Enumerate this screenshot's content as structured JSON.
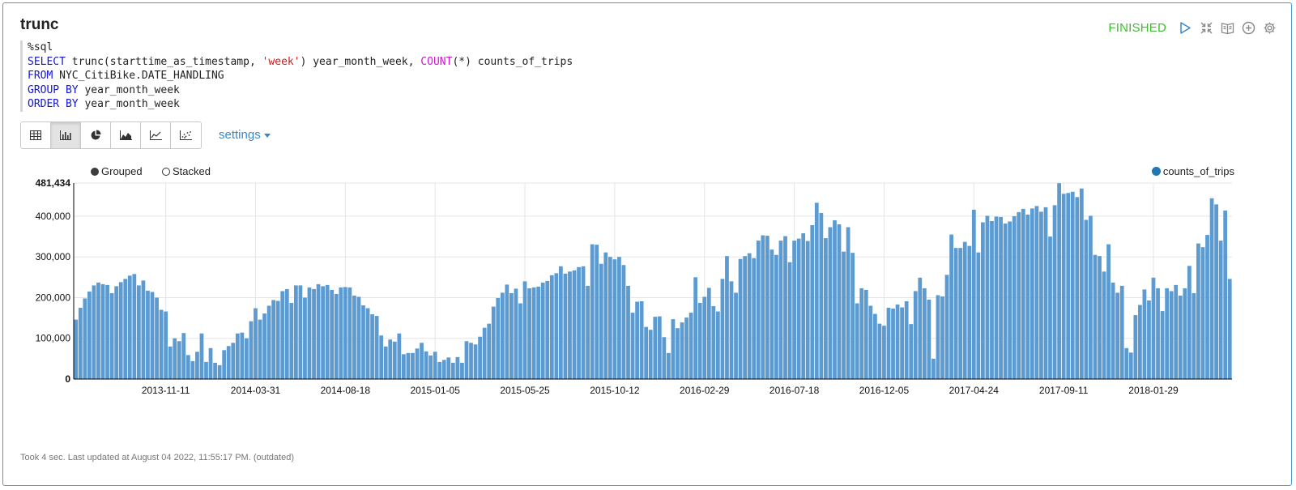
{
  "paragraph": {
    "title": "trunc",
    "status": "FINISHED",
    "status_color": "#3ebd2f",
    "control_icons": [
      "run-icon",
      "collapse-icon",
      "book-icon",
      "add-icon",
      "gear-icon"
    ]
  },
  "code": {
    "lines": [
      [
        {
          "t": "%sql",
          "c": ""
        }
      ],
      [
        {
          "t": "SELECT",
          "c": "kw"
        },
        {
          "t": " trunc(starttime_as_timestamp, ",
          "c": ""
        },
        {
          "t": "'week'",
          "c": "str"
        },
        {
          "t": ") year_month_week, ",
          "c": ""
        },
        {
          "t": "COUNT",
          "c": "fn"
        },
        {
          "t": "(*) counts_of_trips",
          "c": ""
        }
      ],
      [
        {
          "t": "FROM",
          "c": "kw"
        },
        {
          "t": " NYC_CitiBike.DATE_HANDLING",
          "c": ""
        }
      ],
      [
        {
          "t": "GROUP BY",
          "c": "kw"
        },
        {
          "t": " year_month_week",
          "c": ""
        }
      ],
      [
        {
          "t": "ORDER BY",
          "c": "kw"
        },
        {
          "t": " year_month_week",
          "c": ""
        }
      ]
    ]
  },
  "toolbar": {
    "buttons": [
      {
        "name": "table-view-button",
        "icon": "table-icon"
      },
      {
        "name": "bar-chart-button",
        "icon": "bar-chart-icon",
        "active": true
      },
      {
        "name": "pie-chart-button",
        "icon": "pie-chart-icon"
      },
      {
        "name": "area-chart-button",
        "icon": "area-chart-icon"
      },
      {
        "name": "line-chart-button",
        "icon": "line-chart-icon"
      },
      {
        "name": "scatter-chart-button",
        "icon": "scatter-chart-icon"
      }
    ],
    "settings_label": "settings"
  },
  "chart_controls": {
    "grouped_label": "Grouped",
    "stacked_label": "Stacked",
    "selected": "Grouped"
  },
  "chart_data": {
    "type": "bar",
    "series": [
      {
        "name": "counts_of_trips",
        "color": "#5b9bd1"
      }
    ],
    "ylim": [
      0,
      481434
    ],
    "y_ticks": [
      0,
      100000,
      200000,
      300000,
      400000,
      481434
    ],
    "y_tick_labels": [
      "0",
      "100,000",
      "200,000",
      "300,000",
      "400,000",
      "481,434"
    ],
    "x_tick_labels": [
      "2013-11-11",
      "2014-03-31",
      "2014-08-18",
      "2015-01-05",
      "2015-05-25",
      "2015-10-12",
      "2016-02-29",
      "2016-07-18",
      "2016-12-05",
      "2017-04-24",
      "2017-09-11",
      "2018-01-29"
    ],
    "x_tick_bar_index": [
      20,
      40,
      60,
      80,
      100,
      120,
      140,
      160,
      180,
      200,
      220,
      240
    ],
    "values": [
      146000,
      175000,
      198000,
      215000,
      230000,
      237000,
      233000,
      231000,
      211000,
      228000,
      238000,
      246000,
      254000,
      258000,
      230000,
      242000,
      217000,
      214000,
      200000,
      170000,
      166000,
      80000,
      100000,
      93000,
      113000,
      59000,
      44000,
      67000,
      112000,
      42000,
      76000,
      40000,
      34000,
      71000,
      81000,
      89000,
      112000,
      114000,
      100000,
      142000,
      174000,
      146000,
      161000,
      180000,
      194000,
      192000,
      216000,
      221000,
      187000,
      230000,
      230000,
      200000,
      225000,
      221000,
      233000,
      228000,
      231000,
      219000,
      209000,
      225000,
      226000,
      225000,
      205000,
      202000,
      181000,
      174000,
      159000,
      155000,
      107000,
      80000,
      97000,
      92000,
      112000,
      61000,
      64000,
      64000,
      75000,
      89000,
      68000,
      58000,
      67000,
      42000,
      47000,
      53000,
      40000,
      54000,
      40000,
      93000,
      89000,
      85000,
      104000,
      126000,
      136000,
      178000,
      199000,
      212000,
      232000,
      211000,
      222000,
      186000,
      240000,
      223000,
      225000,
      227000,
      237000,
      241000,
      255000,
      260000,
      277000,
      259000,
      264000,
      267000,
      275000,
      277000,
      229000,
      331000,
      330000,
      283000,
      311000,
      300000,
      294000,
      300000,
      280000,
      229000,
      163000,
      190000,
      191000,
      128000,
      121000,
      153000,
      154000,
      103000,
      64000,
      147000,
      125000,
      139000,
      151000,
      163000,
      250000,
      187000,
      202000,
      224000,
      179000,
      166000,
      246000,
      302000,
      240000,
      212000,
      295000,
      302000,
      309000,
      297000,
      340000,
      353000,
      352000,
      318000,
      305000,
      340000,
      351000,
      287000,
      340000,
      345000,
      358000,
      339000,
      378000,
      433000,
      408000,
      346000,
      373000,
      390000,
      380000,
      313000,
      373000,
      310000,
      186000,
      223000,
      219000,
      180000,
      160000,
      136000,
      131000,
      175000,
      173000,
      183000,
      176000,
      191000,
      135000,
      216000,
      249000,
      223000,
      195000,
      50000,
      206000,
      203000,
      256000,
      355000,
      322000,
      322000,
      337000,
      327000,
      416000,
      311000,
      385000,
      401000,
      388000,
      399000,
      398000,
      382000,
      387000,
      400000,
      410000,
      418000,
      404000,
      419000,
      425000,
      411000,
      422000,
      350000,
      427000,
      481000,
      455000,
      457000,
      460000,
      447000,
      468000,
      391000,
      401000,
      305000,
      302000,
      264000,
      331000,
      237000,
      212000,
      229000,
      76000,
      65000,
      157000,
      182000,
      220000,
      193000,
      249000,
      223000,
      167000,
      223000,
      216000,
      231000,
      205000,
      223000,
      278000,
      211000,
      333000,
      324000,
      354000,
      444000,
      429000,
      340000,
      414000,
      246000
    ]
  },
  "footer": {
    "text": "Took 4 sec. Last updated at August 04 2022, 11:55:17 PM. (outdated)"
  }
}
